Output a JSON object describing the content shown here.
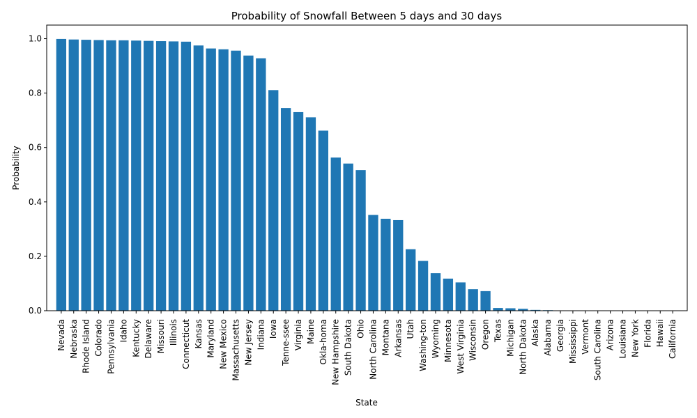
{
  "chart_data": {
    "type": "bar",
    "title": "Probability of Snowfall Between 5 days and 30 days",
    "xlabel": "State",
    "ylabel": "Probability",
    "ylim": [
      0,
      1.05
    ],
    "yticks": [
      "0.0",
      "0.2",
      "0.4",
      "0.6",
      "0.8",
      "1.0"
    ],
    "grid": false,
    "bar_color": "#1f77b4",
    "categories": [
      "Nevada",
      "Nebraska",
      "Rhode Island",
      "Colorado",
      "Pennsylvania",
      "Idaho",
      "Kentucky",
      "Delaware",
      "Missouri",
      "Illinois",
      "Connecticut",
      "Kansas",
      "Maryland",
      "New Mexico",
      "Massachusetts",
      "New Jersey",
      "Indiana",
      "Iowa",
      "Tenne-ssee",
      "Virginia",
      "Maine",
      "Okla-homa",
      "New Hampshire",
      "South Dakota",
      "Ohio",
      "North Carolina",
      "Montana",
      "Arkansas",
      "Utah",
      "Washing-ton",
      "Wyoming",
      "Minnesota",
      "West Virginia",
      "Wisconsin",
      "Oregon",
      "Texas",
      "Michigan",
      "North Dakota",
      "Alaska",
      "Alabama",
      "Georgia",
      "Mississippi",
      "Vermont",
      "South Carolina",
      "Arizona",
      "Louisiana",
      "New York",
      "Florida",
      "Hawaii",
      "California"
    ],
    "values": [
      0.999,
      0.997,
      0.996,
      0.995,
      0.994,
      0.994,
      0.993,
      0.992,
      0.991,
      0.99,
      0.989,
      0.975,
      0.964,
      0.961,
      0.956,
      0.938,
      0.928,
      0.811,
      0.745,
      0.73,
      0.711,
      0.662,
      0.563,
      0.541,
      0.517,
      0.352,
      0.338,
      0.333,
      0.226,
      0.183,
      0.138,
      0.118,
      0.104,
      0.079,
      0.072,
      0.01,
      0.009,
      0.007,
      0.003,
      0.002,
      0.0005,
      0.0004,
      0.0003,
      0.0002,
      0.0001,
      0.0001,
      0.0,
      0.0,
      0.0,
      0.0
    ]
  }
}
